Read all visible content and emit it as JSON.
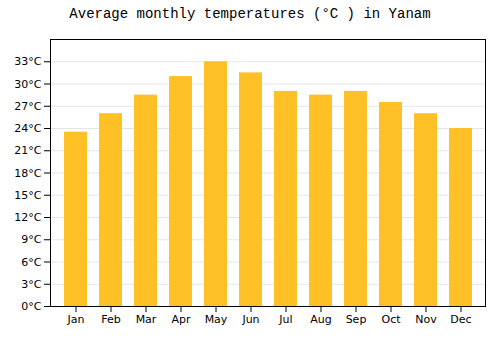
{
  "chart_data": {
    "type": "bar",
    "title": "Average monthly temperatures (°C ) in Yanam",
    "categories": [
      "Jan",
      "Feb",
      "Mar",
      "Apr",
      "May",
      "Jun",
      "Jul",
      "Aug",
      "Sep",
      "Oct",
      "Nov",
      "Dec"
    ],
    "values": [
      23.5,
      26.0,
      28.5,
      31.0,
      33.0,
      31.5,
      29.0,
      28.5,
      29.0,
      27.5,
      26.0,
      24.0
    ],
    "color": "#FFC125",
    "ylim": [
      0,
      36
    ],
    "yticks": [
      {
        "value": 0,
        "label": "0°C"
      },
      {
        "value": 3,
        "label": "3°C"
      },
      {
        "value": 6,
        "label": "6°C"
      },
      {
        "value": 9,
        "label": "9°C"
      },
      {
        "value": 12,
        "label": "12°C"
      },
      {
        "value": 15,
        "label": "15°C"
      },
      {
        "value": 18,
        "label": "18°C"
      },
      {
        "value": 21,
        "label": "21°C"
      },
      {
        "value": 24,
        "label": "24°C"
      },
      {
        "value": 27,
        "label": "27°C"
      },
      {
        "value": 30,
        "label": "30°C"
      },
      {
        "value": 33,
        "label": "33°C"
      }
    ],
    "grid": true
  }
}
